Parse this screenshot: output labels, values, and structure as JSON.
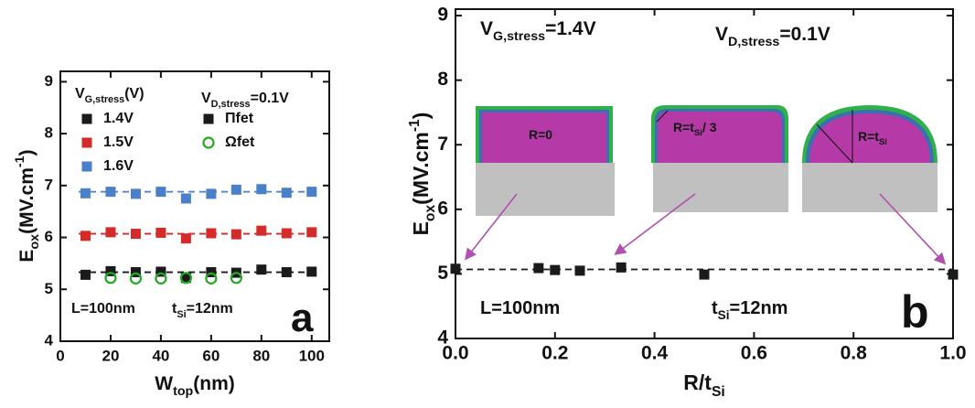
{
  "chart_data": [
    {
      "type": "scatter",
      "xlabel": [
        {
          "text": "W"
        },
        {
          "text": "top",
          "sub": true
        },
        {
          "text": "(nm)"
        }
      ],
      "ylabel": [
        {
          "text": "E"
        },
        {
          "text": "ox",
          "sub": true
        },
        {
          "text": "(MV.cm"
        },
        {
          "text": "-1",
          "sup": true
        },
        {
          "text": ")"
        }
      ],
      "xlim": [
        0,
        107
      ],
      "ylim": [
        4,
        9.2
      ],
      "xticks": [
        0,
        20,
        40,
        60,
        80,
        100
      ],
      "yticks": [
        4,
        5,
        6,
        7,
        8,
        9
      ],
      "legend_title": [
        {
          "text": "V"
        },
        {
          "text": "G,stress",
          "sub": true
        },
        {
          "text": "(V)"
        }
      ],
      "series": [
        {
          "name": "1.4V",
          "color": "#1a1a1a",
          "marker": "square",
          "x": [
            10,
            20,
            30,
            40,
            50,
            60,
            70,
            80,
            90,
            100
          ],
          "values": [
            5.28,
            5.35,
            5.33,
            5.34,
            5.22,
            5.33,
            5.32,
            5.38,
            5.33,
            5.34
          ]
        },
        {
          "name": "1.5V",
          "color": "#d42a2a",
          "marker": "square",
          "x": [
            10,
            20,
            30,
            40,
            50,
            60,
            70,
            80,
            90,
            100
          ],
          "values": [
            6.03,
            6.1,
            6.07,
            6.09,
            5.98,
            6.08,
            6.06,
            6.13,
            6.08,
            6.1
          ]
        },
        {
          "name": "1.6V",
          "color": "#4a80c8",
          "marker": "square",
          "x": [
            10,
            20,
            30,
            40,
            50,
            60,
            70,
            80,
            90,
            100
          ],
          "values": [
            6.85,
            6.88,
            6.84,
            6.88,
            6.75,
            6.84,
            6.92,
            6.93,
            6.86,
            6.88
          ]
        },
        {
          "name": "Ωfet",
          "color": "#22aa22",
          "marker": "circle",
          "x": [
            20,
            30,
            40,
            50,
            60,
            70
          ],
          "values": [
            5.22,
            5.21,
            5.21,
            5.22,
            5.21,
            5.22
          ]
        }
      ],
      "legend_extra": [
        {
          "name": "Πfet",
          "color": "#1a1a1a",
          "marker": "square"
        }
      ],
      "fit_lines": [
        {
          "value": 5.33,
          "color": "#1a1a1a"
        },
        {
          "value": 6.07,
          "color": "#d42a2a"
        },
        {
          "value": 6.88,
          "color": "#4a80c8"
        }
      ],
      "annotations": [
        [
          {
            "text": "V"
          },
          {
            "text": "D,stress",
            "sub": true
          },
          {
            "text": "=0.1V"
          }
        ],
        [
          {
            "text": "L=100nm"
          }
        ],
        [
          {
            "text": "t"
          },
          {
            "text": "Si",
            "sub": true
          },
          {
            "text": "=12nm"
          }
        ],
        [
          {
            "text": "a"
          }
        ]
      ]
    },
    {
      "type": "scatter",
      "xlabel": [
        {
          "text": "R/t"
        },
        {
          "text": "Si",
          "sub": true
        }
      ],
      "ylabel": [
        {
          "text": "E"
        },
        {
          "text": "ox",
          "sub": true
        },
        {
          "text": "(MV.cm"
        },
        {
          "text": "-1",
          "sup": true
        },
        {
          "text": ")"
        }
      ],
      "xlim": [
        0,
        1
      ],
      "ylim": [
        4,
        9.1
      ],
      "xticks": [
        {
          "value": 0,
          "label": "0.0"
        },
        0.2,
        0.4,
        0.6,
        0.8,
        {
          "value": 1,
          "label": "1.0"
        }
      ],
      "yticks": [
        4,
        5,
        6,
        7,
        8,
        9
      ],
      "series": [
        {
          "color": "#1a1a1a",
          "marker": "square",
          "x": [
            0,
            0.167,
            0.2,
            0.25,
            0.333,
            0.5,
            1
          ],
          "values": [
            5.08,
            5.09,
            5.06,
            5.05,
            5.1,
            4.99,
            4.99
          ]
        }
      ],
      "fit_lines": [
        {
          "value": 5.07,
          "color": "#1a1a1a"
        }
      ],
      "annotations": [
        [
          {
            "text": "V"
          },
          {
            "text": "G,stress",
            "sub": true
          },
          {
            "text": "=1.4V"
          }
        ],
        [
          {
            "text": "V"
          },
          {
            "text": "D,stress",
            "sub": true
          },
          {
            "text": "=0.1V"
          }
        ],
        [
          {
            "text": "L=100nm"
          }
        ],
        [
          {
            "text": "t"
          },
          {
            "text": "Si",
            "sub": true
          },
          {
            "text": "=12nm"
          }
        ],
        [
          {
            "text": "b"
          }
        ],
        [
          {
            "text": "R=0"
          }
        ],
        [
          {
            "text": "R=t"
          },
          {
            "text": "Si",
            "sub": true
          },
          {
            "text": "/ 3"
          }
        ],
        [
          {
            "text": "R=t"
          },
          {
            "text": "Si",
            "sub": true
          }
        ]
      ]
    }
  ]
}
